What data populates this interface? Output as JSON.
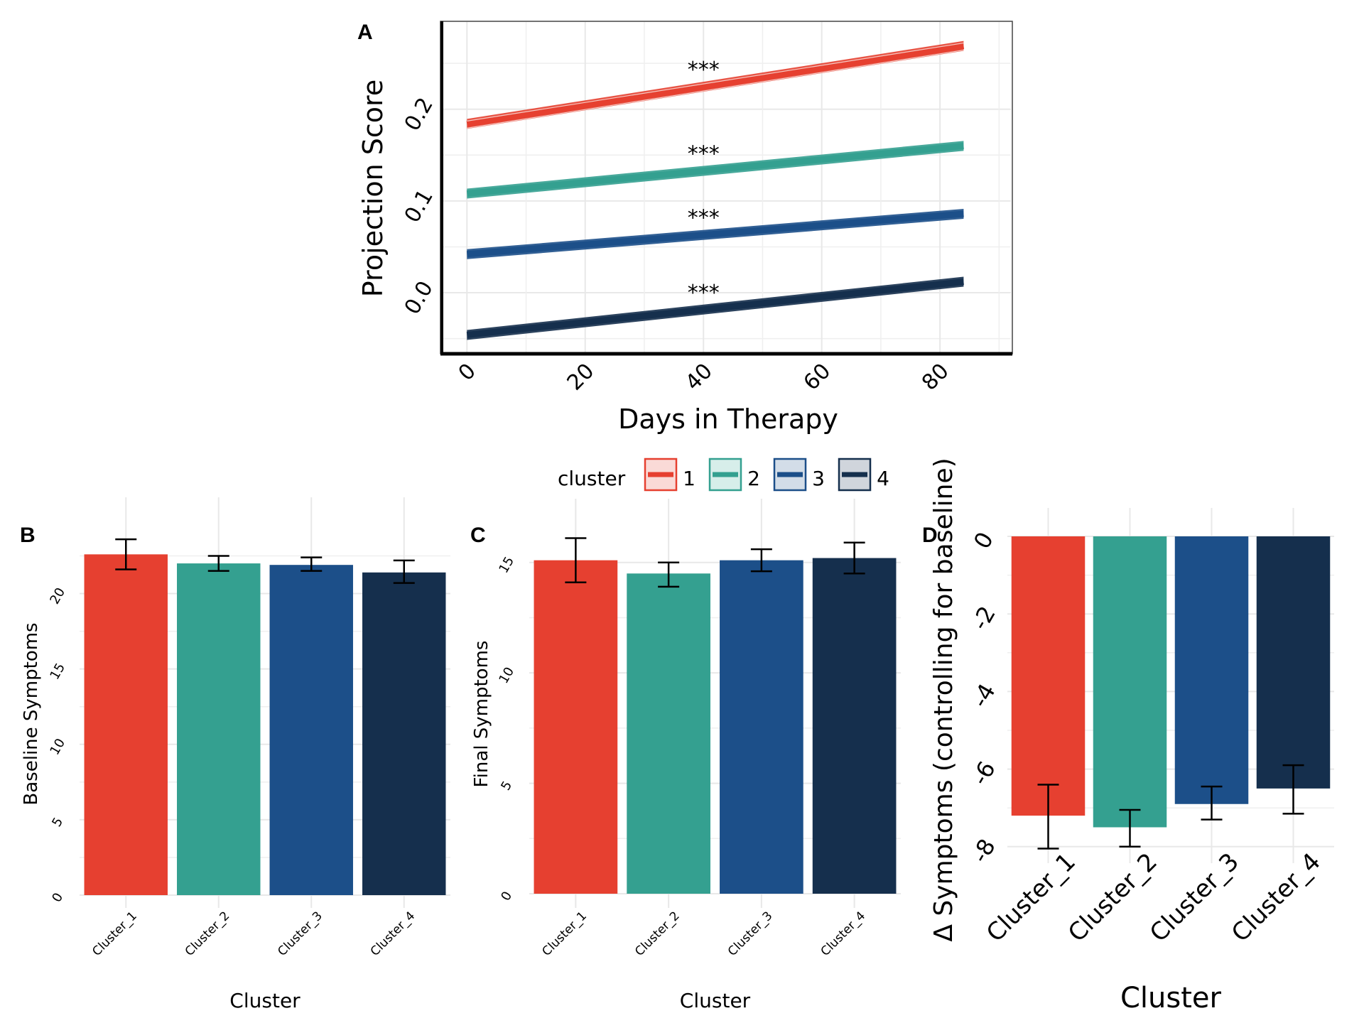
{
  "colors": {
    "cluster_1": "#E64030",
    "cluster_2": "#34A090",
    "cluster_3": "#1C4F89",
    "cluster_4": "#152F4D"
  },
  "legend": {
    "title": "cluster",
    "items": [
      "1",
      "2",
      "3",
      "4"
    ]
  },
  "chart_data": [
    {
      "panel": "A",
      "type": "line",
      "title": "",
      "xlabel": "Days in Therapy",
      "ylabel": "Projection Score",
      "xlim": [
        -4,
        92
      ],
      "ylim": [
        -0.065,
        0.295
      ],
      "xticks": [
        "0",
        "20",
        "40",
        "60",
        "80"
      ],
      "xtick_values": [
        0,
        20,
        40,
        60,
        80
      ],
      "yticks": [
        "0.0",
        "0.1",
        "0.2"
      ],
      "ytick_values": [
        0.0,
        0.1,
        0.2
      ],
      "grid": true,
      "legend_position": "bottom",
      "series": [
        {
          "name": "1",
          "x": [
            0,
            84
          ],
          "y": [
            0.184,
            0.269
          ],
          "annotation": "***",
          "annotation_x": 40
        },
        {
          "name": "2",
          "x": [
            0,
            84
          ],
          "y": [
            0.108,
            0.16
          ],
          "annotation": "***",
          "annotation_x": 40
        },
        {
          "name": "3",
          "x": [
            0,
            84
          ],
          "y": [
            0.042,
            0.086
          ],
          "annotation": "***",
          "annotation_x": 40
        },
        {
          "name": "4",
          "x": [
            0,
            84
          ],
          "y": [
            -0.046,
            0.012
          ],
          "annotation": "***",
          "annotation_x": 40
        }
      ]
    },
    {
      "panel": "B",
      "type": "bar",
      "title": "",
      "xlabel": "Cluster",
      "ylabel": "Baseline Symptoms",
      "categories": [
        "Cluster_1",
        "Cluster_2",
        "Cluster_3",
        "Cluster_4"
      ],
      "values": [
        22.6,
        22.0,
        21.9,
        21.4
      ],
      "error_low": [
        21.6,
        21.5,
        21.5,
        20.7
      ],
      "error_high": [
        23.6,
        22.5,
        22.4,
        22.2
      ],
      "ylim": [
        0,
        24.5
      ],
      "yticks": [
        "0",
        "5",
        "10",
        "15",
        "20"
      ],
      "ytick_values": [
        0,
        5,
        10,
        15,
        20
      ],
      "grid": true
    },
    {
      "panel": "C",
      "type": "bar",
      "title": "",
      "xlabel": "Cluster",
      "ylabel": "Final Symptoms",
      "categories": [
        "Cluster_1",
        "Cluster_2",
        "Cluster_3",
        "Cluster_4"
      ],
      "values": [
        15.1,
        14.5,
        15.1,
        15.2
      ],
      "error_low": [
        14.1,
        13.9,
        14.6,
        14.5
      ],
      "error_high": [
        16.1,
        15.0,
        15.6,
        15.9
      ],
      "ylim": [
        0,
        16.6
      ],
      "yticks": [
        "0",
        "5",
        "10",
        "15"
      ],
      "ytick_values": [
        0,
        5,
        10,
        15
      ],
      "grid": true
    },
    {
      "panel": "D",
      "type": "bar",
      "title": "",
      "xlabel": "Cluster",
      "ylabel": "Δ Symptoms (controlling for baseline)",
      "categories": [
        "Cluster_1",
        "Cluster_2",
        "Cluster_3",
        "Cluster_4"
      ],
      "values": [
        -7.2,
        -7.5,
        -6.9,
        -6.5
      ],
      "error_low": [
        -8.05,
        -8.0,
        -7.3,
        -7.15
      ],
      "error_high": [
        -6.4,
        -7.05,
        -6.45,
        -5.9
      ],
      "ylim": [
        -8.15,
        0
      ],
      "yticks": [
        "0",
        "-2",
        "-4",
        "-6",
        "-8"
      ],
      "ytick_values": [
        0,
        -2,
        -4,
        -6,
        -8
      ],
      "grid": true
    }
  ]
}
